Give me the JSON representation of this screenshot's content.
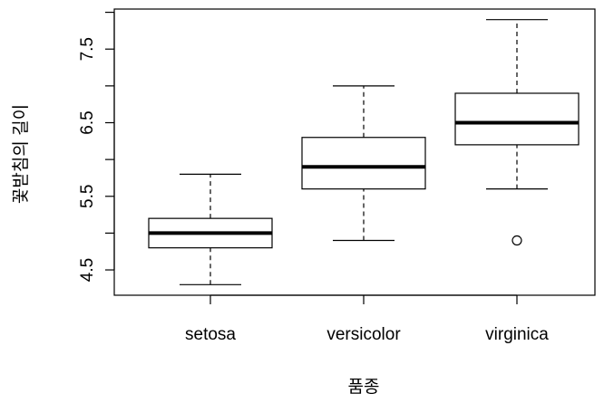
{
  "chart_data": {
    "type": "boxplot",
    "x_label": "품종",
    "y_label": "꽃받침의 길이",
    "categories": [
      "setosa",
      "versicolor",
      "virginica"
    ],
    "boxes": [
      {
        "whislo": 4.3,
        "q1": 4.8,
        "med": 5.0,
        "q3": 5.2,
        "whishi": 5.8,
        "fliers": []
      },
      {
        "whislo": 4.9,
        "q1": 5.6,
        "med": 5.9,
        "q3": 6.3,
        "whishi": 7.0,
        "fliers": []
      },
      {
        "whislo": 5.6,
        "q1": 6.2,
        "med": 6.5,
        "q3": 6.9,
        "whishi": 7.9,
        "fliers": [
          4.9
        ]
      }
    ],
    "ylim": [
      4.156,
      8.044
    ],
    "yticks": [
      4.5,
      5.5,
      6.5,
      7.5
    ],
    "yminorticks": [
      5,
      6,
      7,
      8
    ],
    "color": "#000000"
  }
}
